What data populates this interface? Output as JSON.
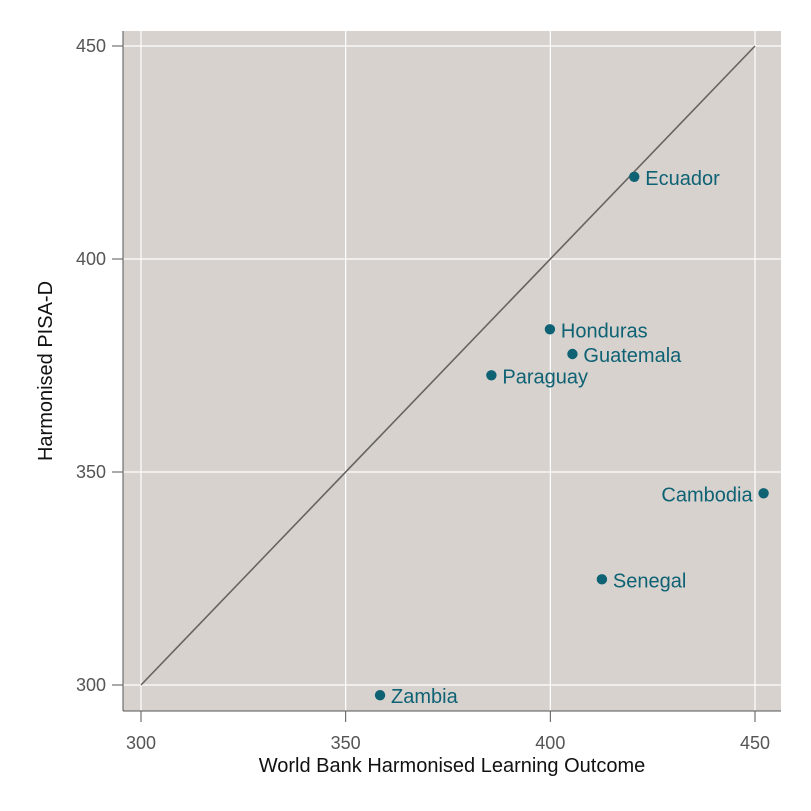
{
  "chart_data": {
    "type": "scatter",
    "title": "",
    "xlabel": "World Bank Harmonised Learning Outcome",
    "ylabel": "Harmonised PISA-D",
    "xlim": [
      296,
      452
    ],
    "ylim": [
      294,
      453
    ],
    "xticks": [
      300,
      350,
      400,
      450
    ],
    "yticks": [
      300,
      350,
      400,
      450
    ],
    "grid": true,
    "reference_line": {
      "x": [
        300,
        450
      ],
      "y": [
        300,
        450
      ]
    },
    "points": [
      {
        "label": "Ecuador",
        "x": 420.5,
        "y": 419.3,
        "label_side": "right"
      },
      {
        "label": "Honduras",
        "x": 399.9,
        "y": 383.5,
        "label_side": "right"
      },
      {
        "label": "Guatemala",
        "x": 405.4,
        "y": 377.7,
        "label_side": "right"
      },
      {
        "label": "Paraguay",
        "x": 385.6,
        "y": 372.7,
        "label_side": "right"
      },
      {
        "label": "Cambodia",
        "x": 452.1,
        "y": 345.0,
        "label_side": "left"
      },
      {
        "label": "Senegal",
        "x": 412.6,
        "y": 324.8,
        "label_side": "right"
      },
      {
        "label": "Zambia",
        "x": 358.4,
        "y": 297.6,
        "label_side": "right"
      }
    ],
    "colors": {
      "plot_background": "#d7d2ce",
      "grid": "#ffffff",
      "point": "#0e6274",
      "reference_line": "#666360",
      "axis": "#555555"
    }
  }
}
